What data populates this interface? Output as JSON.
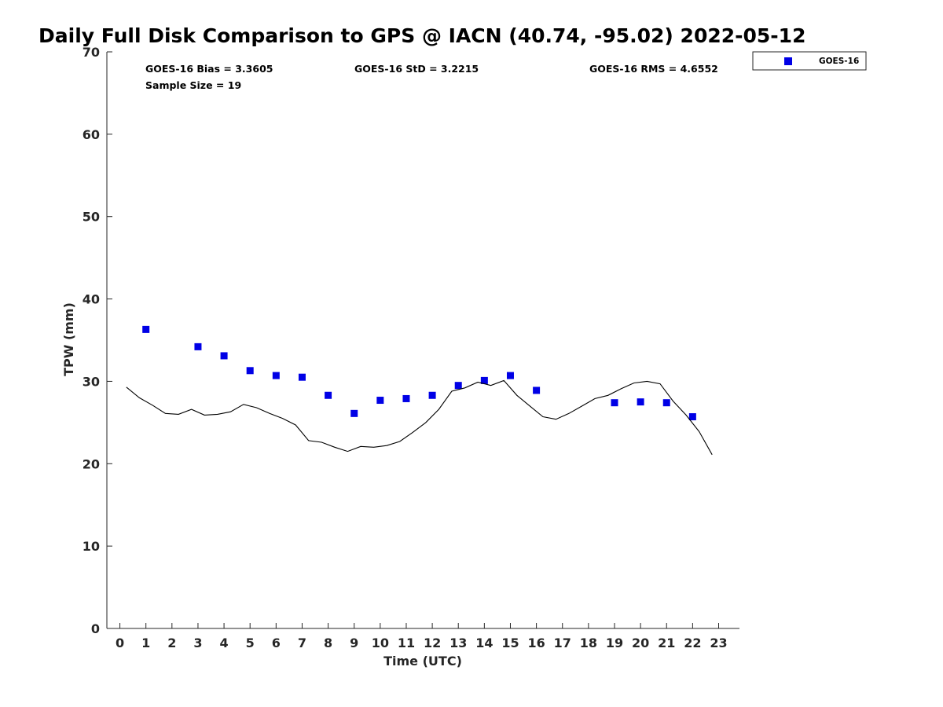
{
  "chart_data": {
    "type": "scatter",
    "title": "Daily Full Disk Comparison to GPS @ IACN (40.74, -95.02) 2022-05-12",
    "xlabel": "Time (UTC)",
    "ylabel": "TPW (mm)",
    "xlim": [
      -0.5,
      23.8
    ],
    "ylim": [
      0,
      70
    ],
    "xticks": [
      0,
      1,
      2,
      3,
      4,
      5,
      6,
      7,
      8,
      9,
      10,
      11,
      12,
      13,
      14,
      15,
      16,
      17,
      18,
      19,
      20,
      21,
      22,
      23
    ],
    "yticks": [
      0,
      10,
      20,
      30,
      40,
      50,
      60,
      70
    ],
    "grid": false,
    "legend": {
      "position": "top-right",
      "entries": [
        "GOES-16"
      ]
    },
    "annotations": [
      "GOES-16 Bias = 3.3605",
      "GOES-16 StD = 3.2215",
      "GOES-16 RMS = 4.6552",
      "Sample Size = 19"
    ],
    "series": [
      {
        "name": "GOES-16",
        "kind": "scatter",
        "marker": "square",
        "color": "#0000e6",
        "x": [
          1,
          3,
          4,
          5,
          6,
          7,
          8,
          9,
          10,
          11,
          12,
          13,
          14,
          15,
          16,
          19,
          20,
          21,
          22
        ],
        "y": [
          36.3,
          34.2,
          33.1,
          31.3,
          30.7,
          30.5,
          28.3,
          26.1,
          27.7,
          27.9,
          28.3,
          29.5,
          30.1,
          30.7,
          28.9,
          27.4,
          27.5,
          27.4,
          25.7
        ]
      },
      {
        "kind": "line",
        "color": "#000000",
        "x": [
          0.25,
          0.75,
          1.25,
          1.75,
          2.25,
          2.75,
          3.25,
          3.75,
          4.25,
          4.75,
          5.25,
          5.75,
          6.25,
          6.75,
          7.25,
          7.75,
          8.25,
          8.75,
          9.25,
          9.75,
          10.25,
          10.75,
          11.25,
          11.75,
          12.25,
          12.75,
          13.25,
          13.75,
          14.25,
          14.75,
          15.25,
          15.75,
          16.25,
          16.75,
          17.25,
          17.75,
          18.25,
          18.75,
          19.25,
          19.75,
          20.25,
          20.75,
          21.25,
          21.75,
          22.25,
          22.75
        ],
        "y": [
          29.3,
          28.0,
          27.1,
          26.1,
          26.0,
          26.6,
          25.9,
          26.0,
          26.3,
          27.2,
          26.8,
          26.1,
          25.5,
          24.7,
          22.8,
          22.6,
          22.0,
          21.5,
          22.1,
          22.0,
          22.2,
          22.7,
          23.8,
          25.0,
          26.6,
          28.8,
          29.2,
          29.9,
          29.5,
          30.1,
          28.3,
          27.0,
          25.7,
          25.4,
          26.1,
          27.0,
          27.9,
          28.3,
          29.1,
          29.8,
          30.0,
          29.7,
          27.6,
          25.9,
          23.9,
          21.1
        ]
      }
    ]
  }
}
